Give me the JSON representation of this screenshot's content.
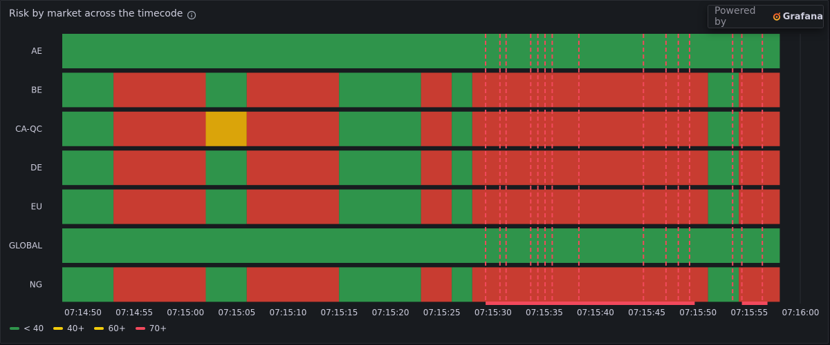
{
  "panel": {
    "title": "Risk by market across the timecode",
    "info_icon": "info-circle-icon",
    "powered_by": "Powered by",
    "brand": "Grafana",
    "brand_icon": "grafana-logo-icon"
  },
  "colors": {
    "green": "#2f944b",
    "yellow": "#daa40a",
    "red": "#c83c31",
    "annotation": "#f2495c",
    "background": "#181b1f"
  },
  "chart_data": {
    "type": "heatmap",
    "title": "Risk by market across the timecode",
    "rows": [
      "AE",
      "BE",
      "CA-QC",
      "DE",
      "EU",
      "GLOBAL",
      "NG"
    ],
    "x_ticks": [
      "07:14:50",
      "07:14:55",
      "07:15:00",
      "07:15:05",
      "07:15:10",
      "07:15:15",
      "07:15:20",
      "07:15:25",
      "07:15:30",
      "07:15:35",
      "07:15:40",
      "07:15:45",
      "07:15:50",
      "07:15:55",
      "07:16:00"
    ],
    "x_range_seconds": [
      0,
      72
    ],
    "x_range_note": "seconds from 07:14:50",
    "states": [
      {
        "label": "< 40",
        "color": "#2f944b"
      },
      {
        "label": "40+",
        "color": "#daa40a"
      },
      {
        "label": "60+",
        "color": "#daa40a"
      },
      {
        "label": "70+",
        "color": "#c83c31"
      }
    ],
    "segments": {
      "AE": [
        {
          "start": 0,
          "end": 70,
          "state": "< 40"
        }
      ],
      "BE": [
        {
          "start": 0,
          "end": 5,
          "state": "< 40"
        },
        {
          "start": 5,
          "end": 14,
          "state": "70+"
        },
        {
          "start": 14,
          "end": 18,
          "state": "< 40"
        },
        {
          "start": 18,
          "end": 27,
          "state": "70+"
        },
        {
          "start": 27,
          "end": 35,
          "state": "< 40"
        },
        {
          "start": 35,
          "end": 38,
          "state": "70+"
        },
        {
          "start": 38,
          "end": 40,
          "state": "< 40"
        },
        {
          "start": 40,
          "end": 63,
          "state": "70+"
        },
        {
          "start": 63,
          "end": 66,
          "state": "< 40"
        },
        {
          "start": 66,
          "end": 70,
          "state": "70+"
        }
      ],
      "CA-QC": [
        {
          "start": 0,
          "end": 5,
          "state": "< 40"
        },
        {
          "start": 5,
          "end": 14,
          "state": "70+"
        },
        {
          "start": 14,
          "end": 18,
          "state": "60+"
        },
        {
          "start": 18,
          "end": 27,
          "state": "70+"
        },
        {
          "start": 27,
          "end": 35,
          "state": "< 40"
        },
        {
          "start": 35,
          "end": 38,
          "state": "70+"
        },
        {
          "start": 38,
          "end": 40,
          "state": "< 40"
        },
        {
          "start": 40,
          "end": 63,
          "state": "70+"
        },
        {
          "start": 63,
          "end": 66,
          "state": "< 40"
        },
        {
          "start": 66,
          "end": 70,
          "state": "70+"
        }
      ],
      "DE": [
        {
          "start": 0,
          "end": 5,
          "state": "< 40"
        },
        {
          "start": 5,
          "end": 14,
          "state": "70+"
        },
        {
          "start": 14,
          "end": 18,
          "state": "< 40"
        },
        {
          "start": 18,
          "end": 27,
          "state": "70+"
        },
        {
          "start": 27,
          "end": 35,
          "state": "< 40"
        },
        {
          "start": 35,
          "end": 38,
          "state": "70+"
        },
        {
          "start": 38,
          "end": 40,
          "state": "< 40"
        },
        {
          "start": 40,
          "end": 63,
          "state": "70+"
        },
        {
          "start": 63,
          "end": 66,
          "state": "< 40"
        },
        {
          "start": 66,
          "end": 70,
          "state": "70+"
        }
      ],
      "EU": [
        {
          "start": 0,
          "end": 5,
          "state": "< 40"
        },
        {
          "start": 5,
          "end": 14,
          "state": "70+"
        },
        {
          "start": 14,
          "end": 18,
          "state": "< 40"
        },
        {
          "start": 18,
          "end": 27,
          "state": "70+"
        },
        {
          "start": 27,
          "end": 35,
          "state": "< 40"
        },
        {
          "start": 35,
          "end": 38,
          "state": "70+"
        },
        {
          "start": 38,
          "end": 40,
          "state": "< 40"
        },
        {
          "start": 40,
          "end": 63,
          "state": "70+"
        },
        {
          "start": 63,
          "end": 66,
          "state": "< 40"
        },
        {
          "start": 66,
          "end": 70,
          "state": "70+"
        }
      ],
      "GLOBAL": [
        {
          "start": 0,
          "end": 70,
          "state": "< 40"
        }
      ],
      "NG": [
        {
          "start": 0,
          "end": 5,
          "state": "< 40"
        },
        {
          "start": 5,
          "end": 14,
          "state": "70+"
        },
        {
          "start": 14,
          "end": 18,
          "state": "< 40"
        },
        {
          "start": 18,
          "end": 27,
          "state": "70+"
        },
        {
          "start": 27,
          "end": 35,
          "state": "< 40"
        },
        {
          "start": 35,
          "end": 38,
          "state": "70+"
        },
        {
          "start": 38,
          "end": 40,
          "state": "< 40"
        },
        {
          "start": 40,
          "end": 63,
          "state": "70+"
        },
        {
          "start": 63,
          "end": 66,
          "state": "< 40"
        },
        {
          "start": 66,
          "end": 70,
          "state": "70+"
        }
      ]
    },
    "annotations": [
      41.3,
      42.7,
      43.3,
      45.7,
      46.4,
      47.1,
      47.8,
      50.4,
      56.7,
      58.9,
      60.1,
      61.2,
      65.4,
      66.3,
      68.3
    ],
    "annotation_regions": [
      {
        "start": 41.3,
        "end": 61.7
      },
      {
        "start": 66.3,
        "end": 68.8
      }
    ],
    "legend_position": "bottom-left",
    "grid": true
  }
}
